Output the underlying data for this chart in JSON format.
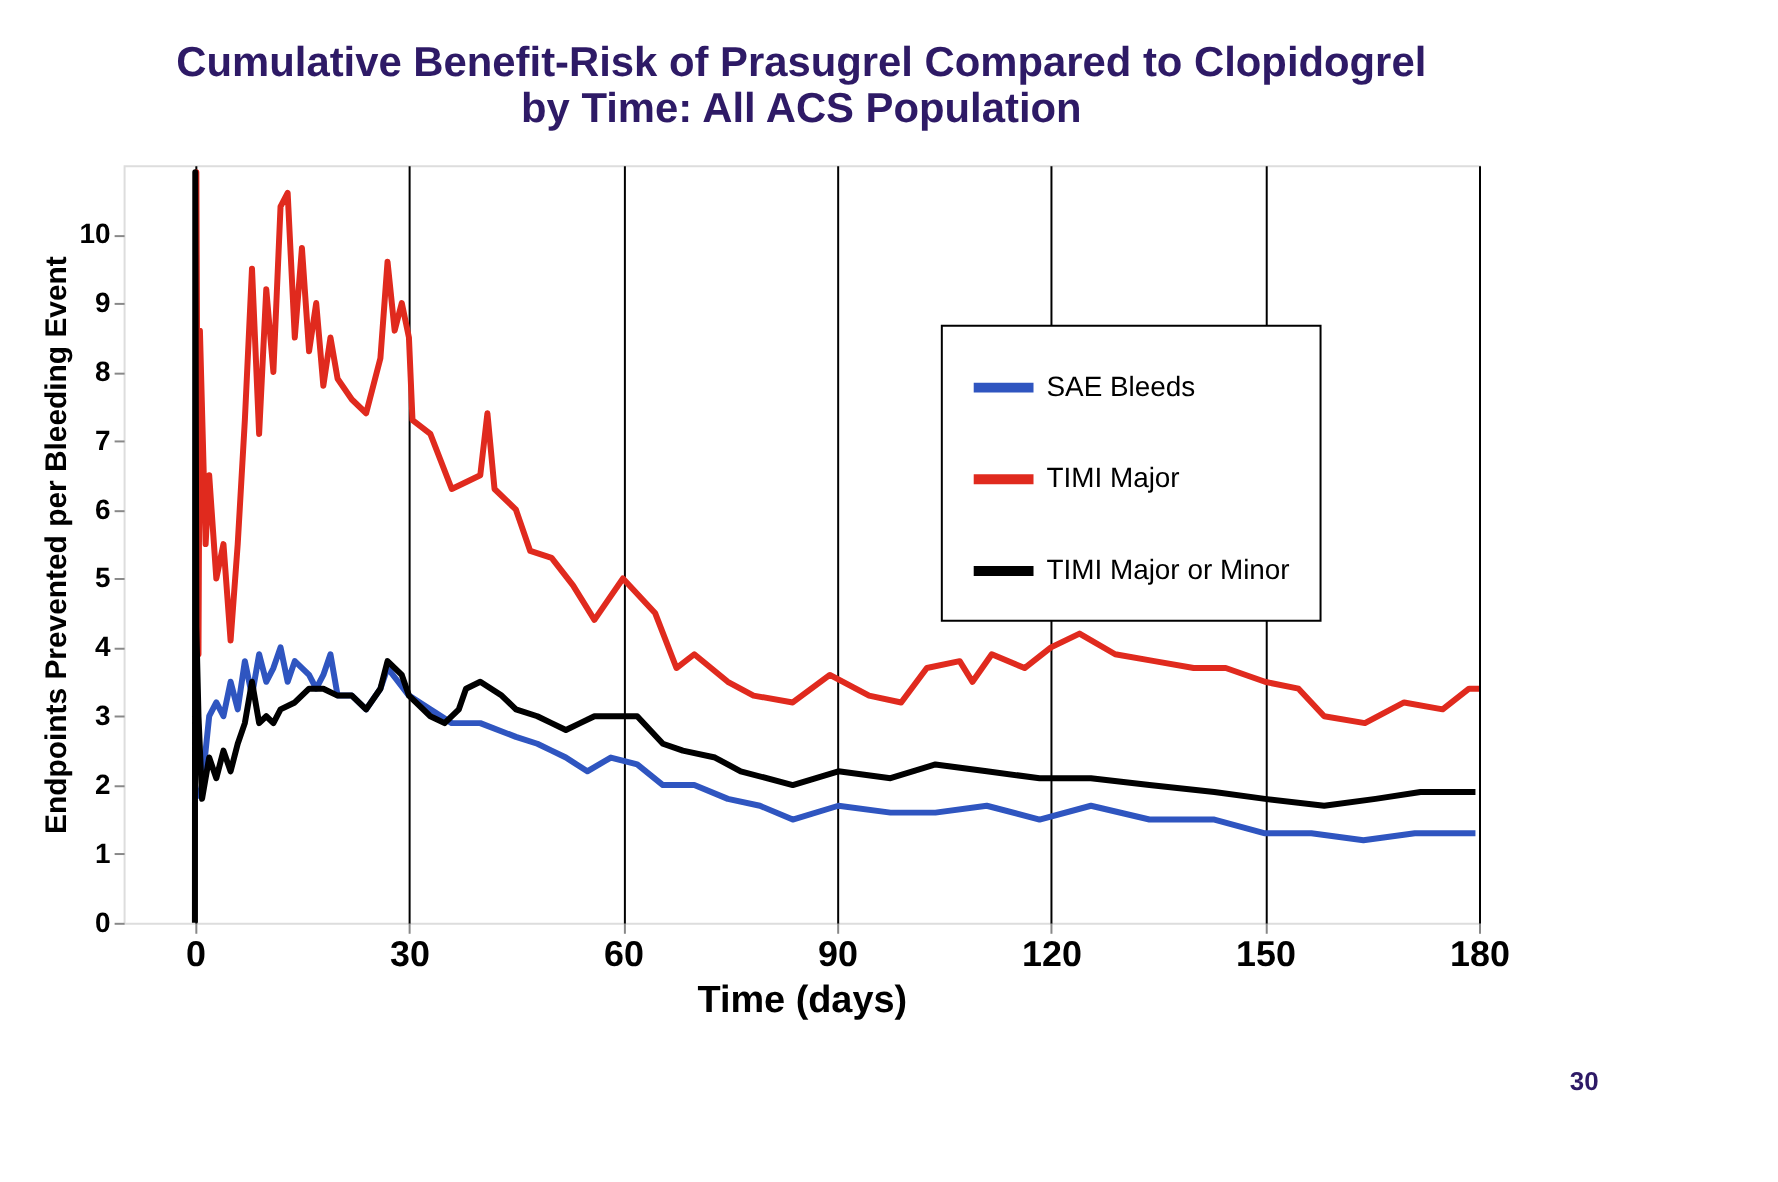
{
  "chart_data": {
    "type": "line",
    "title": "Cumulative Benefit-Risk of Prasugrel Compared to Clopidogrel by Time: All ACS Population",
    "xlabel": "Time (days)",
    "ylabel": "Endpoints Prevented per Bleeding Event",
    "xlim": [
      -10,
      180
    ],
    "xticks": [
      0,
      30,
      60,
      90,
      120,
      150,
      180
    ],
    "ylim": [
      0,
      11
    ],
    "yticks": [
      0,
      1,
      2,
      3,
      4,
      5,
      6,
      7,
      8,
      9,
      10
    ],
    "grid": "x",
    "legend": "top right",
    "line_style": "solid",
    "marker": "none",
    "annotations": [
      "30"
    ],
    "series": [
      {
        "name": "SAE Bleeds",
        "color": "#2f55c0",
        "x": [
          0.5,
          1,
          2,
          3,
          4,
          5,
          6,
          7,
          8,
          9,
          10,
          11,
          12,
          13,
          14,
          16,
          17,
          18,
          19,
          20,
          22,
          24,
          26,
          27,
          30,
          33,
          36,
          40,
          45,
          48,
          50,
          52,
          55,
          58.3,
          62,
          65.6,
          70,
          74.7,
          79.2,
          83.8,
          90.2,
          97.5,
          103.8,
          111,
          118.4,
          125.6,
          133.8,
          142.9,
          150,
          156.5,
          163.8,
          171,
          179.5
        ],
        "values": [
          1.8,
          2.0,
          3.0,
          3.2,
          3.0,
          3.5,
          3.1,
          3.8,
          3.3,
          3.9,
          3.5,
          3.7,
          4.0,
          3.5,
          3.8,
          3.6,
          3.4,
          3.6,
          3.9,
          3.3,
          3.3,
          3.1,
          3.4,
          3.7,
          3.3,
          3.1,
          2.9,
          2.9,
          2.7,
          2.6,
          2.5,
          2.4,
          2.2,
          2.4,
          2.3,
          2.0,
          2.0,
          1.8,
          1.7,
          1.5,
          1.7,
          1.6,
          1.6,
          1.7,
          1.5,
          1.7,
          1.5,
          1.5,
          1.3,
          1.3,
          1.2,
          1.3,
          1.3
        ]
      },
      {
        "name": "TIMI Major",
        "color": "#e02a1e",
        "x": [
          0,
          0.2,
          0.5,
          0.7,
          1.5,
          2,
          3,
          4,
          5,
          6,
          7,
          8,
          9,
          10,
          11,
          12,
          13,
          14,
          15,
          16,
          17,
          18,
          19,
          20,
          22,
          24,
          26,
          27,
          28,
          29,
          30,
          30.5,
          33,
          36,
          40,
          41,
          42,
          45,
          47,
          50,
          53,
          56,
          58,
          60,
          64.5,
          67.5,
          70,
          74.7,
          78.3,
          83.8,
          89,
          94.5,
          99,
          102.6,
          107.2,
          109,
          111.7,
          116.3,
          120,
          124,
          129,
          134.5,
          140,
          144.5,
          150,
          154.7,
          158.3,
          164,
          169.5,
          174.9,
          178.6,
          180
        ],
        "values": [
          10.9,
          10.9,
          3.9,
          8.6,
          5.5,
          6.5,
          5.0,
          5.5,
          4.1,
          5.5,
          7.3,
          9.5,
          7.1,
          9.2,
          8.0,
          10.4,
          10.6,
          8.5,
          9.8,
          8.3,
          9.0,
          7.8,
          8.5,
          7.9,
          7.6,
          7.4,
          8.2,
          9.6,
          8.6,
          9.0,
          8.5,
          7.3,
          7.1,
          6.3,
          6.5,
          7.4,
          6.3,
          6.0,
          5.4,
          5.3,
          4.9,
          4.4,
          4.7,
          5.0,
          4.5,
          3.7,
          3.9,
          3.5,
          3.3,
          3.2,
          3.6,
          3.3,
          3.2,
          3.7,
          3.8,
          3.5,
          3.9,
          3.7,
          4.0,
          4.2,
          3.9,
          3.8,
          3.7,
          3.7,
          3.5,
          3.4,
          3.0,
          2.9,
          3.2,
          3.1,
          3.4,
          3.4
        ]
      },
      {
        "name": "TIMI Major or Minor",
        "color": "#000000",
        "x": [
          0,
          0.05,
          0.2,
          0.5,
          1,
          2,
          3,
          4,
          5,
          6,
          7,
          8,
          9,
          10,
          11,
          12,
          14,
          16,
          18,
          20,
          22,
          24,
          26,
          27,
          29,
          30,
          33,
          35,
          37,
          38,
          40,
          43,
          45,
          48,
          50,
          52,
          54,
          56,
          60,
          62,
          65.6,
          68.4,
          72.9,
          76.5,
          83.8,
          90.2,
          97.5,
          103.8,
          111,
          118.4,
          125.6,
          133.8,
          142.9,
          150,
          158.3,
          165.5,
          171.8,
          179.5
        ],
        "values": [
          0,
          10.9,
          4.3,
          3.0,
          1.8,
          2.4,
          2.1,
          2.5,
          2.2,
          2.6,
          2.9,
          3.5,
          2.9,
          3.0,
          2.9,
          3.1,
          3.2,
          3.4,
          3.4,
          3.3,
          3.3,
          3.1,
          3.4,
          3.8,
          3.6,
          3.3,
          3.0,
          2.9,
          3.1,
          3.4,
          3.5,
          3.3,
          3.1,
          3.0,
          2.9,
          2.8,
          2.9,
          3.0,
          3.0,
          3.0,
          2.6,
          2.5,
          2.4,
          2.2,
          2.0,
          2.2,
          2.1,
          2.3,
          2.2,
          2.1,
          2.1,
          2.0,
          1.9,
          1.8,
          1.7,
          1.8,
          1.9,
          1.9
        ]
      }
    ]
  }
}
